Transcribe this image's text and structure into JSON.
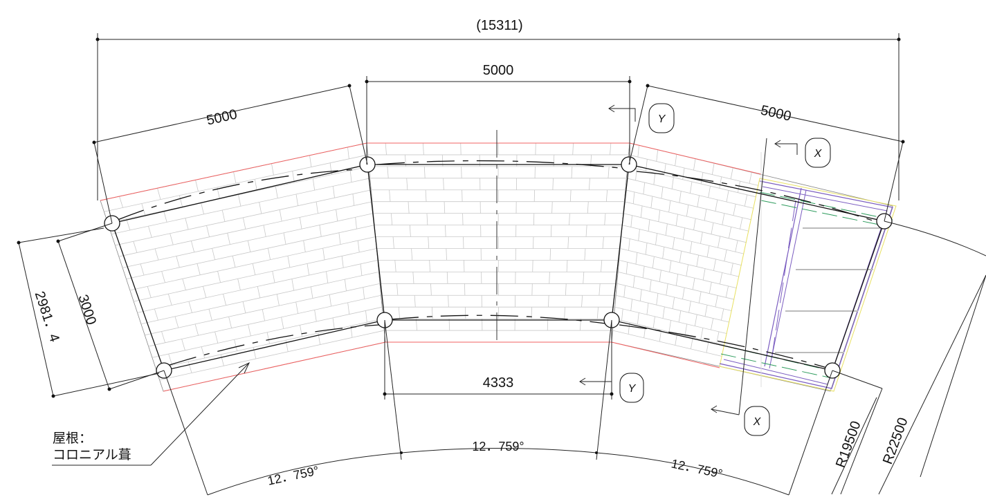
{
  "dimensions": {
    "overall_width": "(15311)",
    "top_left_span": "5000",
    "top_center_span": "5000",
    "top_right_span": "5000",
    "bottom_center_span": "4333",
    "depth_inner": "3000",
    "depth_outer": "2981．4"
  },
  "angles": {
    "left": "12．759°",
    "center": "12．759°",
    "right": "12．759°"
  },
  "radii": {
    "inner": "R19500",
    "outer": "R22500"
  },
  "section_marks": {
    "y_top": "Y",
    "y_bottom": "Y",
    "x_top": "X",
    "x_bottom": "X"
  },
  "note": {
    "line1": "屋根：",
    "line2": "コロニアル葺"
  },
  "colors": {
    "line": "#222222",
    "roof_edge": "#f06060",
    "brick": "#c8c8c8",
    "structure_purple": "#7a5cc0",
    "structure_green": "#2a9a5a",
    "structure_yellow": "#e8e060"
  }
}
